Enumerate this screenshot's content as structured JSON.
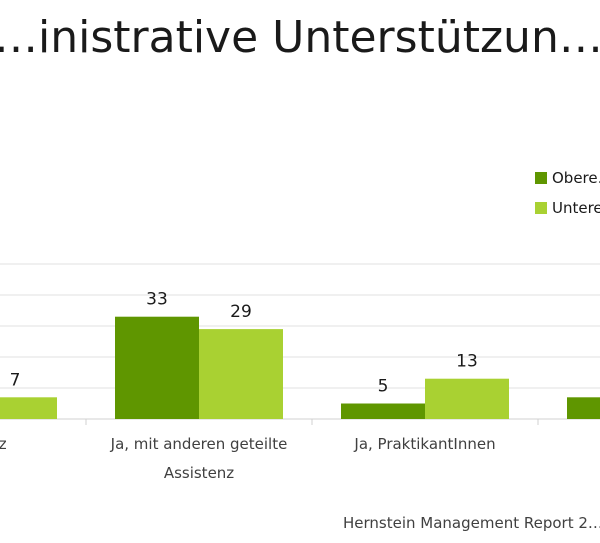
{
  "chart_data": {
    "type": "bar",
    "title": "…inistrative Unterstützun…",
    "categories": [
      "…sistenz",
      "Ja, mit anderen geteilte Assistenz",
      "Ja, PraktikantInnen",
      ""
    ],
    "category_lines": [
      [
        "…sistenz"
      ],
      [
        "Ja, mit anderen geteilte",
        "Assistenz"
      ],
      [
        "Ja, PraktikantInnen"
      ],
      [
        ""
      ]
    ],
    "series": [
      {
        "name": "Obere…",
        "color": "#5f9600",
        "values": [
          null,
          33,
          5,
          7
        ]
      },
      {
        "name": "Untere…",
        "color": "#a9d132",
        "values": [
          7,
          29,
          13,
          null
        ]
      }
    ],
    "data_labels": [
      [
        null,
        "33",
        "5",
        null
      ],
      [
        "7",
        "29",
        "13",
        null
      ]
    ],
    "ylim": [
      0,
      50
    ],
    "grid": true,
    "legend_position": "right",
    "xlabel": "",
    "ylabel": ""
  },
  "source": "Hernstein Management Report 2…"
}
